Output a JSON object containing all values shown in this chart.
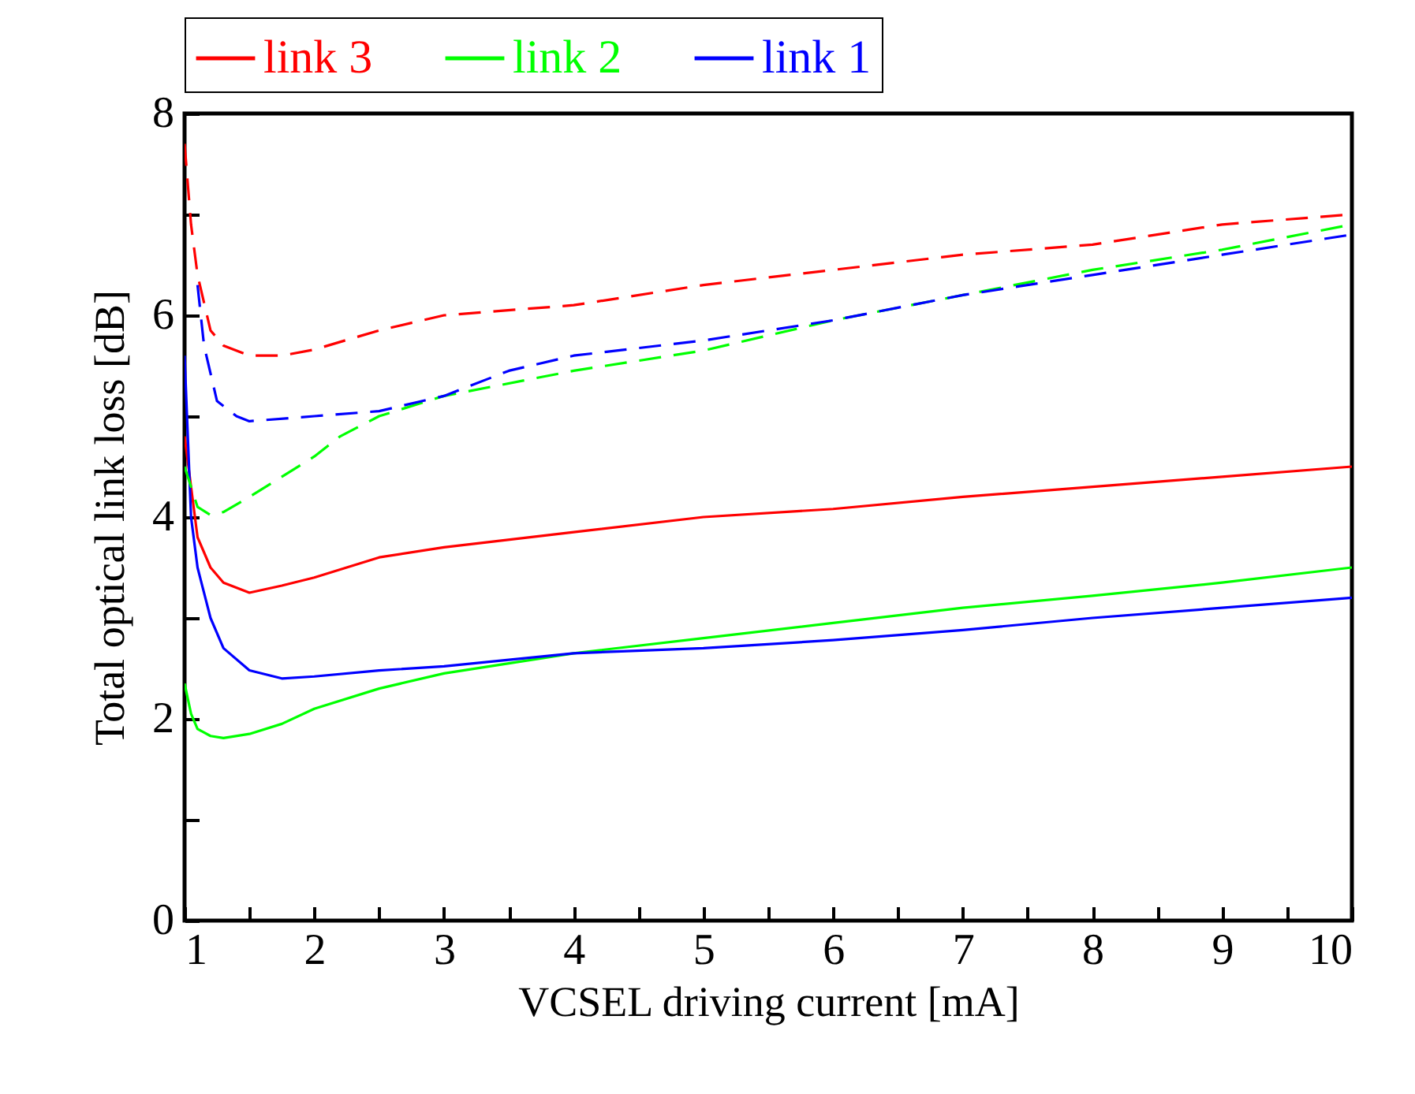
{
  "chart_data": {
    "type": "line",
    "xlabel": "VCSEL driving current [mA]",
    "ylabel": "Total optical link loss [dB]",
    "xlim": [
      1,
      10
    ],
    "ylim": [
      0,
      8
    ],
    "xticks": [
      1,
      {
        "value": 1.5,
        "label": null
      },
      2,
      {
        "value": 2.5,
        "label": null
      },
      3,
      {
        "value": 3.5,
        "label": null
      },
      4,
      {
        "value": 4.5,
        "label": null
      },
      5,
      {
        "value": 5.5,
        "label": null
      },
      6,
      {
        "value": 6.5,
        "label": null
      },
      7,
      {
        "value": 7.5,
        "label": null
      },
      8,
      {
        "value": 8.5,
        "label": null
      },
      9,
      {
        "value": 9.5,
        "label": null
      },
      10
    ],
    "yticks": [
      0,
      {
        "value": 1,
        "label": null
      },
      2,
      {
        "value": 3,
        "label": null
      },
      4,
      {
        "value": 5,
        "label": null
      },
      6,
      {
        "value": 7,
        "label": null
      },
      8
    ],
    "legend": "top",
    "series": [
      {
        "name": "link 3",
        "color": "#ff0000",
        "line_style": "solid",
        "x": [
          1,
          1.05,
          1.1,
          1.2,
          1.3,
          1.5,
          1.75,
          2,
          2.5,
          3,
          4,
          5,
          6,
          7,
          8,
          9,
          10
        ],
        "values": [
          4.8,
          4.3,
          3.8,
          3.5,
          3.35,
          3.25,
          3.32,
          3.4,
          3.6,
          3.7,
          3.85,
          4.0,
          4.08,
          4.2,
          4.3,
          4.4,
          4.5
        ]
      },
      {
        "name": "link 2",
        "color": "#00ff00",
        "line_style": "solid",
        "x": [
          1,
          1.05,
          1.1,
          1.2,
          1.3,
          1.5,
          1.75,
          2,
          2.5,
          3,
          4,
          5,
          6,
          7,
          8,
          9,
          10
        ],
        "values": [
          2.35,
          2.05,
          1.9,
          1.83,
          1.81,
          1.85,
          1.95,
          2.1,
          2.3,
          2.45,
          2.65,
          2.8,
          2.95,
          3.1,
          3.22,
          3.35,
          3.5
        ]
      },
      {
        "name": "link 1",
        "color": "#0000ff",
        "line_style": "solid",
        "x": [
          1,
          1.05,
          1.1,
          1.2,
          1.3,
          1.5,
          1.75,
          2,
          2.5,
          3,
          4,
          5,
          6,
          7,
          8,
          9,
          10
        ],
        "values": [
          5.6,
          4.0,
          3.5,
          3.0,
          2.7,
          2.48,
          2.4,
          2.42,
          2.48,
          2.52,
          2.65,
          2.7,
          2.78,
          2.88,
          3.0,
          3.1,
          3.2
        ]
      },
      {
        "color": "#ff0000",
        "line_style": "dashed",
        "x": [
          1,
          1.05,
          1.1,
          1.2,
          1.3,
          1.5,
          1.75,
          2,
          2.5,
          3,
          4,
          5,
          6,
          7,
          8,
          9,
          10
        ],
        "values": [
          7.7,
          6.9,
          6.4,
          5.85,
          5.7,
          5.6,
          5.6,
          5.66,
          5.85,
          6.0,
          6.1,
          6.3,
          6.45,
          6.6,
          6.7,
          6.9,
          7.0
        ]
      },
      {
        "color": "#00ff00",
        "line_style": "dashed",
        "x": [
          1,
          1.1,
          1.2,
          1.3,
          1.5,
          1.75,
          2,
          2.2,
          2.5,
          3,
          4,
          5,
          6,
          7,
          8,
          9,
          10
        ],
        "values": [
          4.5,
          4.1,
          4.02,
          4.05,
          4.2,
          4.4,
          4.6,
          4.8,
          5.0,
          5.2,
          5.45,
          5.65,
          5.95,
          6.2,
          6.45,
          6.65,
          6.9
        ]
      },
      {
        "color": "#0000ff",
        "line_style": "dashed",
        "x": [
          1.1,
          1.15,
          1.25,
          1.4,
          1.5,
          2,
          2.5,
          3,
          3.5,
          4,
          5,
          6,
          7,
          8,
          9,
          10
        ],
        "values": [
          6.3,
          5.7,
          5.15,
          5.0,
          4.95,
          5.0,
          5.05,
          5.2,
          5.45,
          5.6,
          5.75,
          5.95,
          6.2,
          6.4,
          6.6,
          6.8
        ]
      }
    ]
  }
}
